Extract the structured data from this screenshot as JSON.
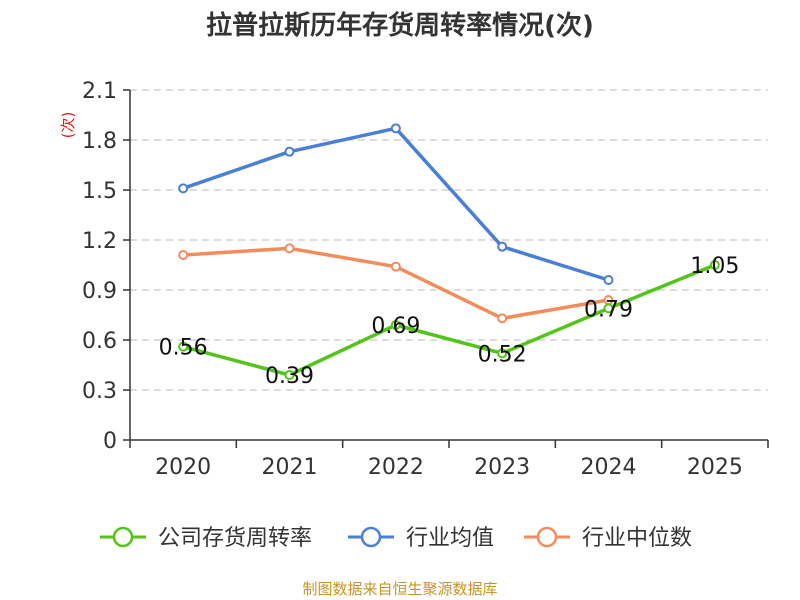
{
  "chart_data": {
    "type": "line",
    "title": "拉普拉斯历年存货周转率情况(次)",
    "ylabel": "(次)",
    "xlabel": "",
    "categories": [
      "2020",
      "2021",
      "2022",
      "2023",
      "2024",
      "2025"
    ],
    "y_ticks": [
      "0",
      "0.3",
      "0.6",
      "0.9",
      "1.2",
      "1.5",
      "1.8",
      "2.1"
    ],
    "ylim": [
      0,
      2.1
    ],
    "grid": true,
    "legend_position": "bottom",
    "series": [
      {
        "name": "公司存货周转率",
        "color": "#52c41a",
        "values": [
          0.56,
          0.39,
          0.69,
          0.52,
          0.79,
          1.05
        ],
        "labels": [
          "0.56",
          "0.39",
          "0.69",
          "0.52",
          "0.79",
          "1.05"
        ]
      },
      {
        "name": "行业均值",
        "color": "#4a7fd4",
        "values": [
          1.51,
          1.73,
          1.87,
          1.16,
          0.96,
          null
        ]
      },
      {
        "name": "行业中位数",
        "color": "#f28c5a",
        "values": [
          1.11,
          1.15,
          1.04,
          0.73,
          0.84,
          null
        ]
      }
    ]
  },
  "source": "制图数据来自恒生聚源数据库"
}
